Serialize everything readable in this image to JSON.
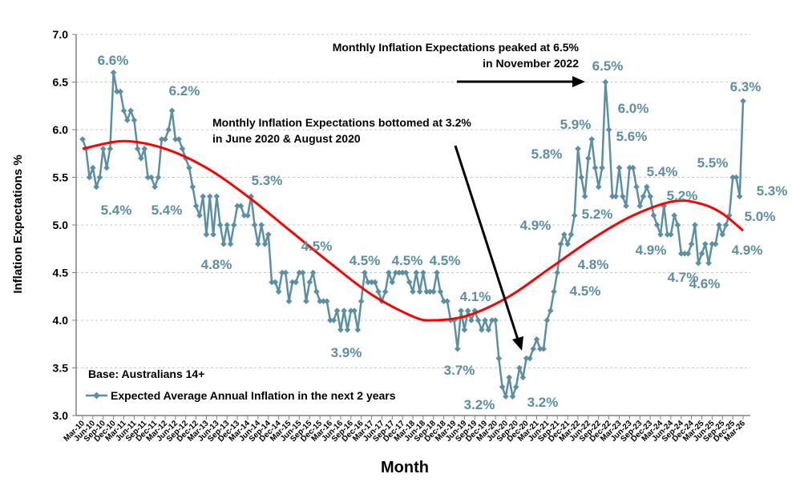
{
  "chart_data": {
    "type": "line",
    "title": "",
    "xlabel": "Month",
    "ylabel": "Inflation Expectations %",
    "ylim": [
      3.0,
      7.0
    ],
    "yticks": [
      "3.0",
      "3.5",
      "4.0",
      "4.5",
      "5.0",
      "5.5",
      "6.0",
      "6.5",
      "7.0"
    ],
    "grid": "horizontal dashed",
    "start_month": "Mar-10",
    "end_month": "Mar-26",
    "xtick_labels": [
      "Mar-10",
      "Jun-10",
      "Sep-10",
      "Dec-10",
      "Mar-11",
      "Jun-11",
      "Sep-11",
      "Dec-11",
      "Mar-12",
      "Jun-12",
      "Sep-12",
      "Dec-12",
      "Mar-13",
      "Jun-13",
      "Sep-13",
      "Dec-13",
      "Mar-14",
      "Jun-14",
      "Sep-14",
      "Dec-14",
      "Mar-15",
      "Jun-15",
      "Sep-15",
      "Dec-15",
      "Mar-16",
      "Jun-16",
      "Sep-16",
      "Dec-16",
      "Mar-17",
      "Jun-17",
      "Sep-17",
      "Dec-17",
      "Mar-18",
      "Jun-18",
      "Sep-18",
      "Dec-18",
      "Mar-19",
      "Jun-19",
      "Sep-19",
      "Dec-19",
      "Mar-20",
      "Jun-20",
      "Sep-20",
      "Dec-20",
      "Mar-21",
      "Jun-21",
      "Sep-21",
      "Dec-21",
      "Mar-22",
      "Jun-22",
      "Sep-22",
      "Dec-22",
      "Mar-23",
      "Jun-23",
      "Sep-23",
      "Dec-23",
      "Mar-24",
      "Jun-24",
      "Sep-24",
      "Dec-24",
      "Mar-25",
      "Jun-25",
      "Sep-25",
      "Dec-25",
      "Mar-26"
    ],
    "series": [
      {
        "name": "Expected Average Annual Inflation in the next 2 years",
        "color": "#5b8fa3",
        "values": [
          5.9,
          5.8,
          5.5,
          5.6,
          5.4,
          5.5,
          5.8,
          5.6,
          5.8,
          6.6,
          6.4,
          6.4,
          6.2,
          6.1,
          6.2,
          6.1,
          5.8,
          5.7,
          5.8,
          5.5,
          5.5,
          5.4,
          5.5,
          5.9,
          5.9,
          6.0,
          6.2,
          5.9,
          5.9,
          5.8,
          5.7,
          5.6,
          5.4,
          5.2,
          5.1,
          5.3,
          4.9,
          5.3,
          4.9,
          5.3,
          5.0,
          4.8,
          5.0,
          4.8,
          5.0,
          5.2,
          5.2,
          5.1,
          5.1,
          5.3,
          5.0,
          4.8,
          5.0,
          4.8,
          4.9,
          4.4,
          4.4,
          4.3,
          4.5,
          4.5,
          4.2,
          4.4,
          4.4,
          4.5,
          4.5,
          4.2,
          4.4,
          4.5,
          4.3,
          4.2,
          4.2,
          4.2,
          4.0,
          4.0,
          4.1,
          3.9,
          4.1,
          3.9,
          4.1,
          4.1,
          3.9,
          4.2,
          4.5,
          4.4,
          4.4,
          4.4,
          4.3,
          4.2,
          4.3,
          4.5,
          4.4,
          4.5,
          4.5,
          4.5,
          4.5,
          4.4,
          4.3,
          4.5,
          4.3,
          4.5,
          4.3,
          4.3,
          4.3,
          4.5,
          4.3,
          4.2,
          4.2,
          4.0,
          4.0,
          3.7,
          4.1,
          3.9,
          4.1,
          4.0,
          4.1,
          4.0,
          3.9,
          4.0,
          3.9,
          4.0,
          4.0,
          3.6,
          3.3,
          3.2,
          3.4,
          3.2,
          3.3,
          3.5,
          3.4,
          3.6,
          3.6,
          3.7,
          3.8,
          3.7,
          3.7,
          4.0,
          4.1,
          4.3,
          4.5,
          4.8,
          4.9,
          4.8,
          4.9,
          5.1,
          5.8,
          5.5,
          5.3,
          5.7,
          5.9,
          5.6,
          5.4,
          5.6,
          6.5,
          6.0,
          5.3,
          5.3,
          5.6,
          5.3,
          5.2,
          5.6,
          5.6,
          5.4,
          5.2,
          5.3,
          5.4,
          5.3,
          5.1,
          5.0,
          4.9,
          5.2,
          4.9,
          4.9,
          5.1,
          5.0,
          4.7,
          4.7,
          4.7,
          4.8,
          5.0,
          4.6,
          4.7,
          4.8,
          4.6,
          4.8,
          4.8,
          5.0,
          4.9,
          5.0,
          5.1,
          5.5,
          5.5,
          5.3,
          6.3
        ]
      },
      {
        "name": "Trend (polynomial)",
        "color": "#ff0000",
        "month_index": [
          0,
          12,
          24,
          36,
          48,
          60,
          72,
          84,
          96,
          102,
          112,
          124,
          136,
          148,
          160,
          172,
          180,
          186,
          192
        ],
        "values": [
          5.8,
          5.88,
          5.8,
          5.6,
          5.3,
          4.95,
          4.6,
          4.27,
          4.04,
          4.0,
          4.05,
          4.25,
          4.55,
          4.85,
          5.1,
          5.25,
          5.22,
          5.12,
          4.94
        ]
      }
    ],
    "data_labels": [
      "6.6%",
      "5.4%",
      "6.2%",
      "5.4%",
      "5.3%",
      "4.8%",
      "4.5%",
      "3.9%",
      "4.5%",
      "4.5%",
      "4.5%",
      "4.1%",
      "3.7%",
      "3.2%",
      "3.2%",
      "4.9%",
      "4.5%",
      "4.8%",
      "5.8%",
      "5.9%",
      "5.2%",
      "6.5%",
      "6.0%",
      "5.6%",
      "5.4%",
      "5.2%",
      "4.9%",
      "4.7%",
      "4.6%",
      "5.5%",
      "6.3%",
      "5.3%",
      "5.0%",
      "4.9%"
    ],
    "annotations": {
      "peak_line1": "Monthly Inflation Expectations peaked at 6.5%",
      "peak_line2": "in November 2022",
      "bottom_line1": "Monthly Inflation Expectations bottomed at 3.2%",
      "bottom_line2": "in June 2020 & August 2020",
      "base": "Base: Australians 14+"
    },
    "legend": {
      "position": "bottom-left",
      "label": "Expected Average Annual Inflation in the next 2 years"
    }
  }
}
